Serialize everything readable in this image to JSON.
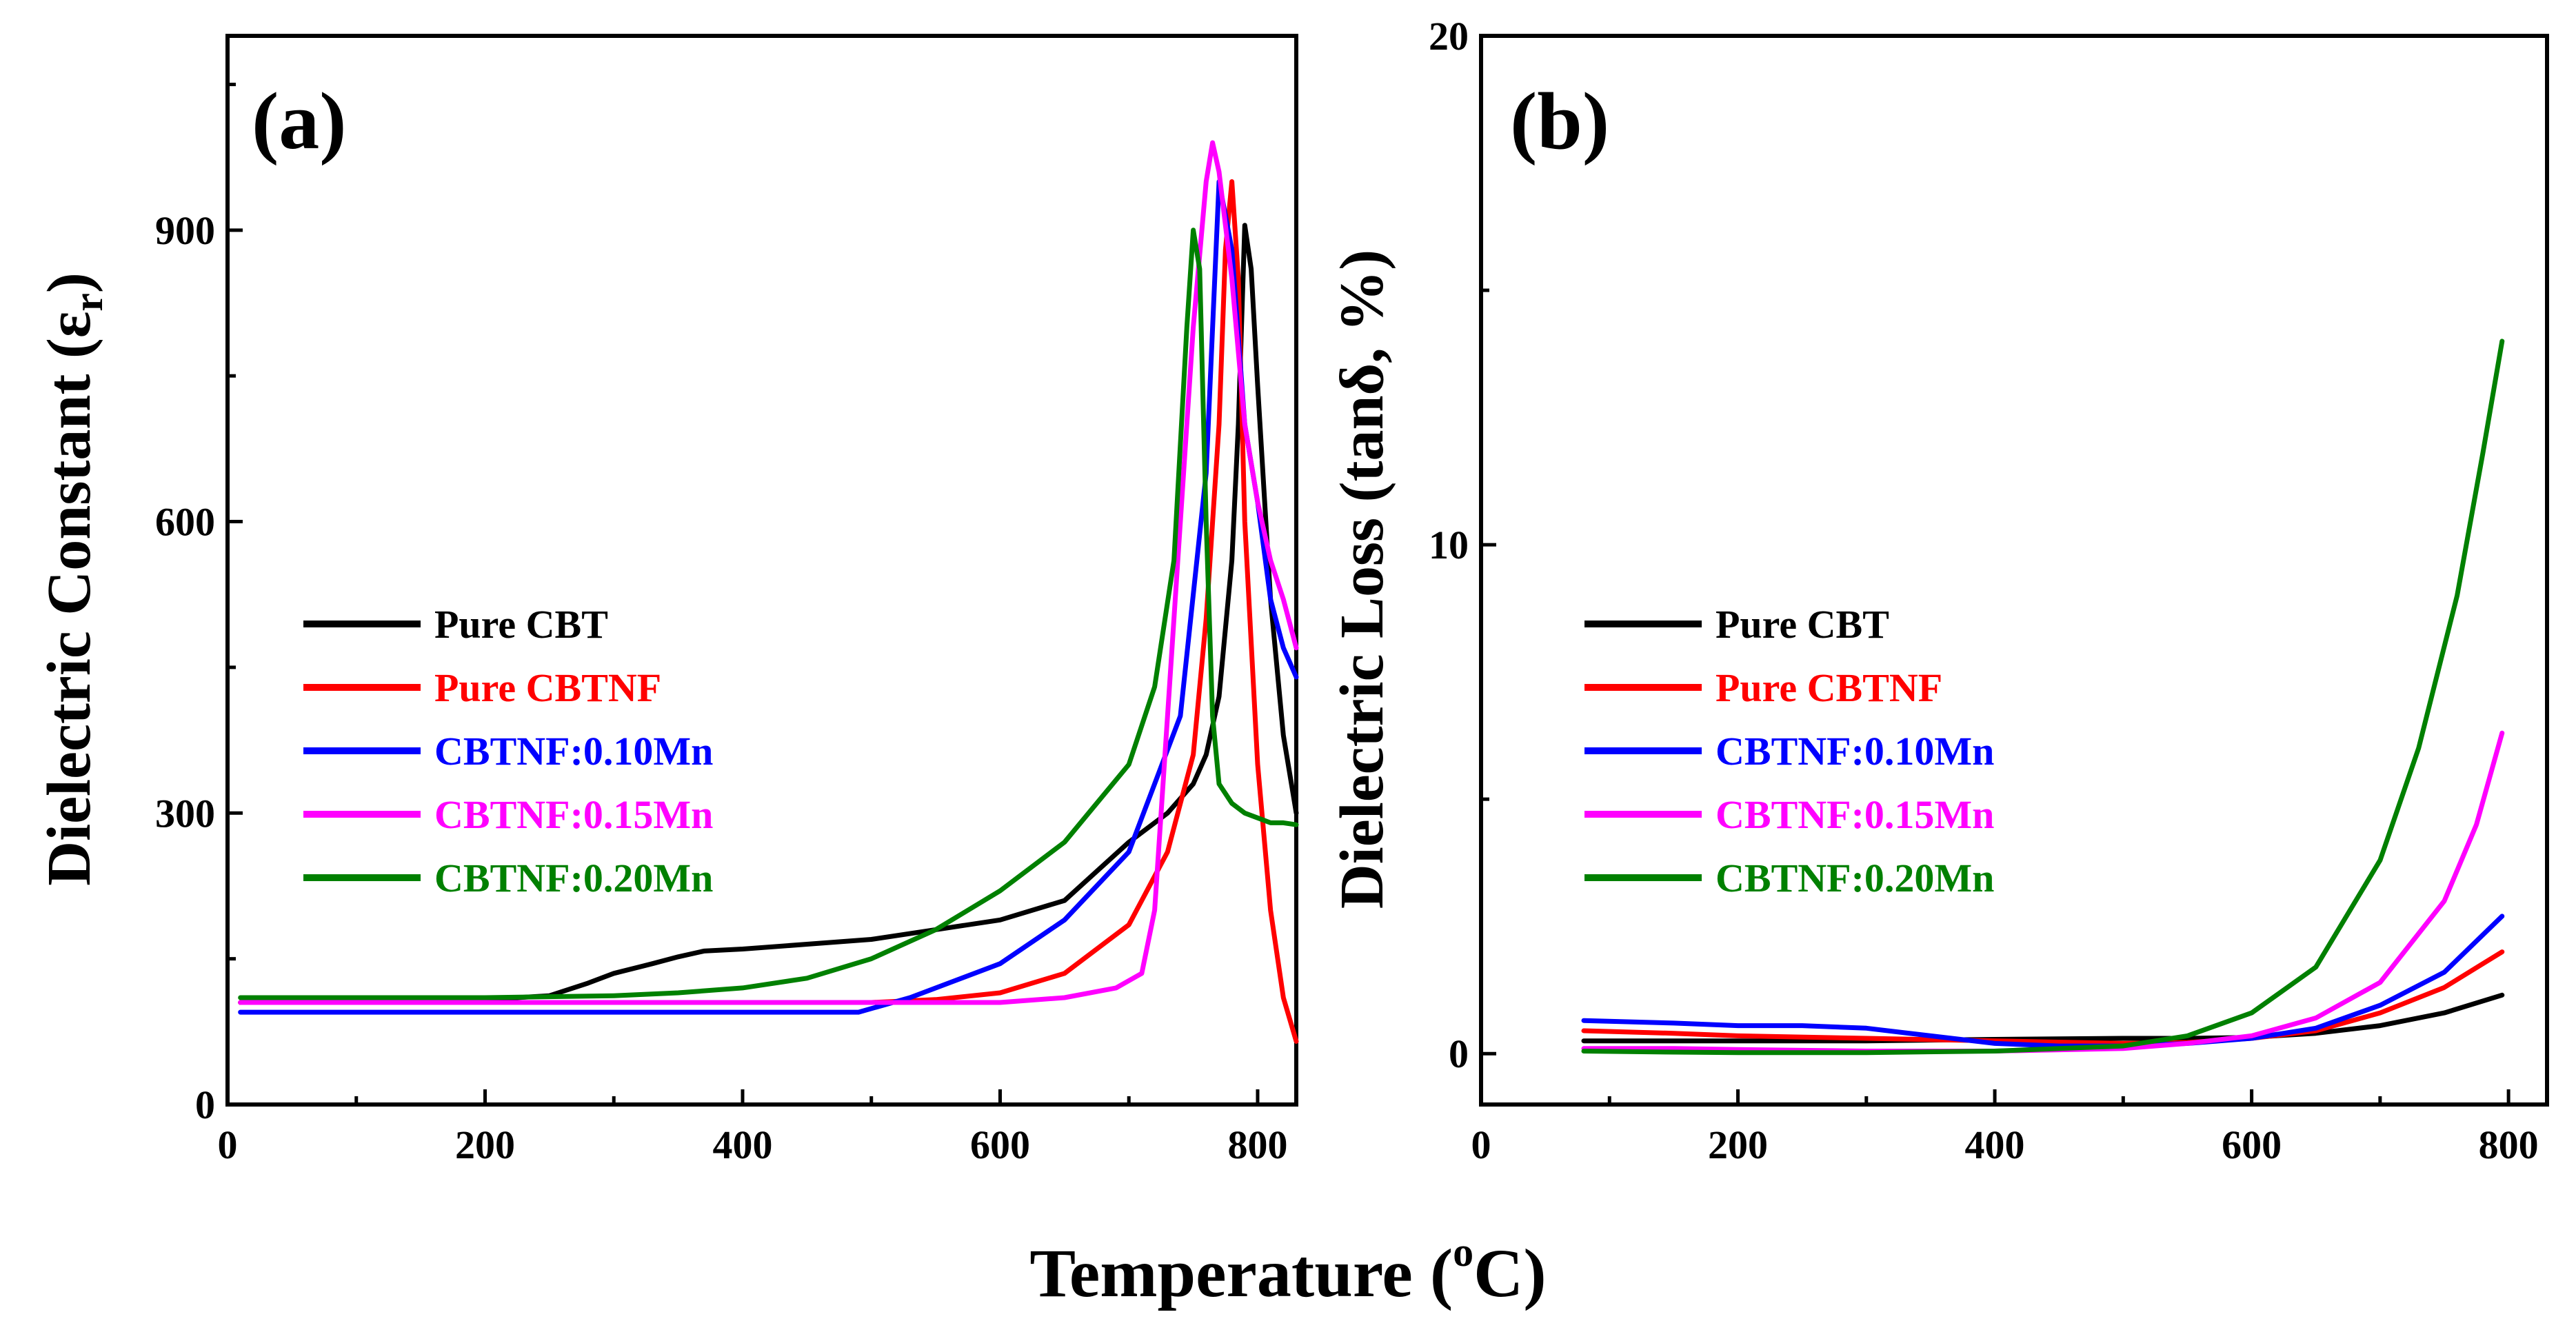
{
  "figure": {
    "xlabel": "Temperature (",
    "xlabel_sup": "o",
    "xlabel_tail": "C)"
  },
  "colors": {
    "pure_cbt": "#000000",
    "pure_cbtnf": "#ff0000",
    "mn010": "#0000ff",
    "mn015": "#ff00ff",
    "mn020": "#008000"
  },
  "chart_data": [
    {
      "type": "line",
      "panel": "(a)",
      "title": "",
      "xlabel": "Temperature (oC)",
      "ylabel_main": "Dielectric Constant (ε",
      "ylabel_sub": "r",
      "ylabel_tail": ")",
      "xlim": [
        0,
        830
      ],
      "ylim": [
        0,
        1100
      ],
      "xticks": [
        0,
        200,
        400,
        600,
        800
      ],
      "yticks": [
        0,
        300,
        600,
        900
      ],
      "legend_position": "middle-left",
      "series": [
        {
          "name": "Pure CBT",
          "color": "#000000",
          "x": [
            10,
            100,
            200,
            250,
            280,
            300,
            330,
            350,
            370,
            400,
            450,
            500,
            550,
            600,
            650,
            700,
            730,
            750,
            760,
            770,
            780,
            785,
            790,
            795,
            800,
            810,
            820,
            830
          ],
          "y": [
            105,
            105,
            108,
            112,
            125,
            135,
            145,
            152,
            158,
            160,
            165,
            170,
            180,
            190,
            210,
            270,
            300,
            330,
            360,
            420,
            560,
            700,
            905,
            860,
            740,
            520,
            380,
            300
          ]
        },
        {
          "name": "Pure CBTNF",
          "color": "#ff0000",
          "x": [
            10,
            100,
            200,
            300,
            400,
            500,
            550,
            600,
            650,
            700,
            730,
            750,
            760,
            770,
            775,
            780,
            785,
            790,
            800,
            810,
            820,
            830
          ],
          "y": [
            105,
            105,
            105,
            105,
            105,
            105,
            108,
            115,
            135,
            185,
            260,
            360,
            500,
            700,
            880,
            950,
            850,
            600,
            350,
            200,
            110,
            65
          ]
        },
        {
          "name": "CBTNF:0.10Mn",
          "color": "#0000ff",
          "x": [
            10,
            100,
            200,
            300,
            400,
            490,
            530,
            600,
            650,
            700,
            740,
            760,
            770,
            780,
            790,
            800,
            810,
            820,
            830
          ],
          "y": [
            95,
            95,
            95,
            95,
            95,
            95,
            110,
            145,
            190,
            260,
            400,
            650,
            950,
            880,
            700,
            620,
            520,
            470,
            440
          ]
        },
        {
          "name": "CBTNF:0.15Mn",
          "color": "#ff00ff",
          "x": [
            10,
            100,
            200,
            300,
            400,
            500,
            600,
            650,
            690,
            710,
            720,
            730,
            740,
            750,
            760,
            765,
            770,
            780,
            790,
            800,
            810,
            820,
            830
          ],
          "y": [
            105,
            105,
            105,
            105,
            105,
            105,
            105,
            110,
            120,
            135,
            200,
            400,
            600,
            800,
            950,
            990,
            960,
            850,
            700,
            620,
            560,
            520,
            470
          ]
        },
        {
          "name": "CBTNF:0.20Mn",
          "color": "#008000",
          "x": [
            10,
            100,
            200,
            300,
            350,
            400,
            450,
            500,
            550,
            600,
            650,
            700,
            720,
            735,
            745,
            750,
            755,
            760,
            765,
            770,
            780,
            790,
            800,
            810,
            820,
            830
          ],
          "y": [
            110,
            110,
            110,
            112,
            115,
            120,
            130,
            150,
            180,
            220,
            270,
            350,
            430,
            560,
            800,
            900,
            860,
            600,
            400,
            330,
            310,
            300,
            295,
            290,
            290,
            288
          ]
        }
      ]
    },
    {
      "type": "line",
      "panel": "(b)",
      "title": "",
      "xlabel": "Temperature (oC)",
      "ylabel": "Dielectric Loss (tanδ, %)",
      "xlim": [
        0,
        830
      ],
      "ylim": [
        -1,
        20
      ],
      "xticks": [
        0,
        200,
        400,
        600,
        800
      ],
      "yticks": [
        0,
        10,
        20
      ],
      "legend_position": "middle-left",
      "series": [
        {
          "name": "Pure CBT",
          "color": "#000000",
          "x": [
            80,
            150,
            200,
            300,
            400,
            500,
            550,
            600,
            650,
            700,
            750,
            795
          ],
          "y": [
            0.25,
            0.25,
            0.25,
            0.25,
            0.28,
            0.3,
            0.3,
            0.32,
            0.4,
            0.55,
            0.8,
            1.15
          ]
        },
        {
          "name": "Pure CBTNF",
          "color": "#ff0000",
          "x": [
            80,
            150,
            200,
            300,
            400,
            500,
            550,
            600,
            650,
            700,
            750,
            795
          ],
          "y": [
            0.45,
            0.4,
            0.35,
            0.3,
            0.25,
            0.2,
            0.22,
            0.3,
            0.45,
            0.8,
            1.3,
            2.0
          ]
        },
        {
          "name": "CBTNF:0.10Mn",
          "color": "#0000ff",
          "x": [
            80,
            150,
            200,
            250,
            300,
            350,
            400,
            450,
            500,
            550,
            600,
            650,
            700,
            750,
            795
          ],
          "y": [
            0.65,
            0.6,
            0.55,
            0.55,
            0.5,
            0.35,
            0.2,
            0.15,
            0.15,
            0.2,
            0.3,
            0.5,
            0.95,
            1.6,
            2.7
          ]
        },
        {
          "name": "CBTNF:0.15Mn",
          "color": "#ff00ff",
          "x": [
            80,
            150,
            200,
            300,
            400,
            500,
            550,
            600,
            650,
            700,
            750,
            775,
            795
          ],
          "y": [
            0.1,
            0.1,
            0.08,
            0.05,
            0.05,
            0.1,
            0.2,
            0.35,
            0.7,
            1.4,
            3.0,
            4.5,
            6.3
          ]
        },
        {
          "name": "CBTNF:0.20Mn",
          "color": "#008000",
          "x": [
            80,
            150,
            200,
            300,
            400,
            500,
            550,
            600,
            650,
            700,
            730,
            760,
            780,
            795
          ],
          "y": [
            0.05,
            0.03,
            0.02,
            0.02,
            0.05,
            0.15,
            0.35,
            0.8,
            1.7,
            3.8,
            6.0,
            9.0,
            11.8,
            14.0
          ]
        }
      ]
    }
  ]
}
